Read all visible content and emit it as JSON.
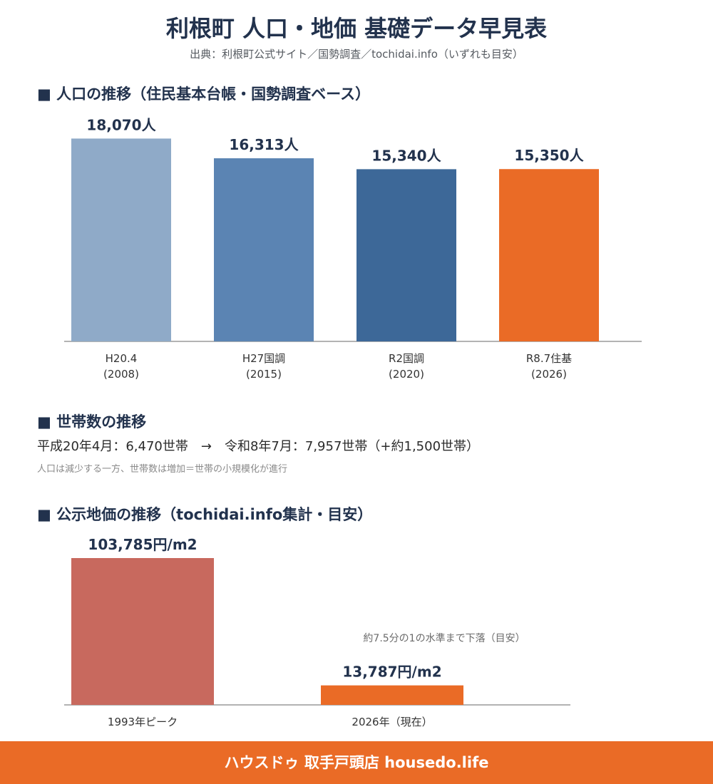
{
  "header": {
    "title": "利根町 人口・地価 基礎データ早見表",
    "subtitle": "出典：利根町公式サイト／国勢調査／tochidai.info（いずれも目安）"
  },
  "population": {
    "heading": "■ 人口の推移（住民基本台帳・国勢調査ベース）"
  },
  "households": {
    "heading": "■ 世帯数の推移",
    "from": "平成20年4月：6,470世帯",
    "arrow": "→",
    "to": "令和8年7月：7,957世帯（+約1,500世帯）",
    "note": "人口は減少する一方、世帯数は増加＝世帯の小規模化が進行"
  },
  "land": {
    "heading": "■ 公示地価の推移（tochidai.info集計・目安）"
  },
  "footer": {
    "text": "ハウスドゥ 取手戸頭店 housedo.life"
  },
  "chart_data": [
    {
      "type": "bar",
      "categories": [
        "H20.4\n(2008)",
        "H27国調\n(2015)",
        "R2国調\n(2020)",
        "R8.7住基\n(2026)"
      ],
      "values": [
        18070,
        16313,
        15340,
        15350
      ],
      "value_labels": [
        "18,070人",
        "16,313人",
        "15,340人",
        "15,350人"
      ],
      "colors": [
        "#8faac8",
        "#5b84b3",
        "#3d6898",
        "#ea6b26"
      ],
      "ylim": [
        0,
        20000
      ]
    },
    {
      "type": "bar",
      "categories": [
        "1993年ピーク",
        "2026年（現在）"
      ],
      "values": [
        103785,
        13787
      ],
      "value_labels": [
        "103,785円/m2",
        "13,787円/m2"
      ],
      "colors": [
        "#c8695e",
        "#ea6b26"
      ],
      "annotation": "約7.5分の1の水準まで下落（目安）",
      "ylim": [
        0,
        103785
      ]
    }
  ]
}
